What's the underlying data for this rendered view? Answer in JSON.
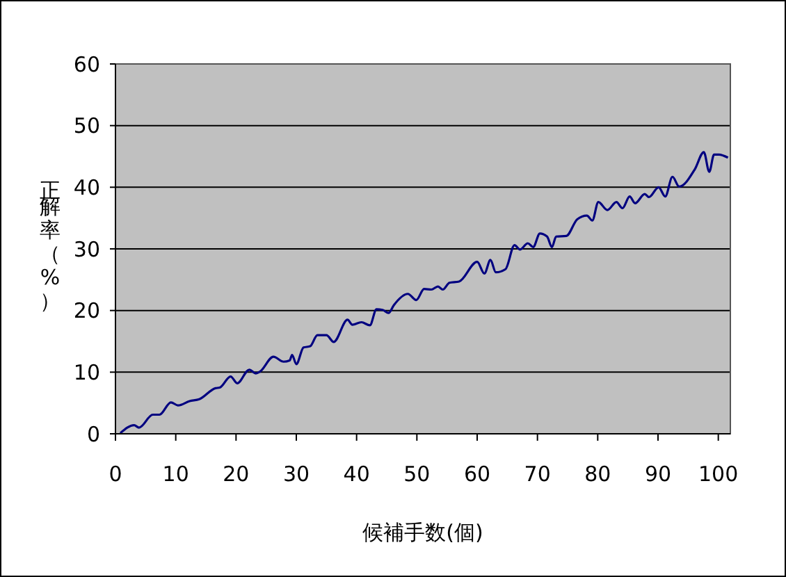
{
  "chart_data": {
    "type": "line",
    "xlabel": "候補手数(個)",
    "ylabel": "正解率（%）",
    "xlim": [
      0,
      102
    ],
    "xticks": [
      0,
      10,
      20,
      30,
      40,
      50,
      60,
      70,
      80,
      90,
      100
    ],
    "ylim": [
      0,
      60
    ],
    "yticks": [
      0,
      10,
      20,
      30,
      40,
      50,
      60
    ],
    "grid": "y",
    "marker": "none",
    "line_style": "solid",
    "series": [
      {
        "color": "#000080",
        "x": [
          0.8,
          3.1,
          3.9,
          6.2,
          7.3,
          9.2,
          10.4,
          12.3,
          13.9,
          16.6,
          17.3,
          19.1,
          20.2,
          22.2,
          23.3,
          24.0,
          26.2,
          27.9,
          28.9,
          29.3,
          30.0,
          31.2,
          32.3,
          33.5,
          35.0,
          36.2,
          38.5,
          39.3,
          40.8,
          42.2,
          43.3,
          44.3,
          45.3,
          46.2,
          48.5,
          49.9,
          51.2,
          52.4,
          53.5,
          54.3,
          55.4,
          57.0,
          60.0,
          61.2,
          62.2,
          63.1,
          64.7,
          66.2,
          67.1,
          68.4,
          69.3,
          70.4,
          71.6,
          72.4,
          73.1,
          74.8,
          76.6,
          78.2,
          79.1,
          80.1,
          81.6,
          83.1,
          84.1,
          85.3,
          86.2,
          87.8,
          88.5,
          90.1,
          91.2,
          92.4,
          93.5,
          96.1,
          97.6,
          98.5,
          99.3,
          100.1,
          101.6
        ],
        "values": [
          0.1,
          1.4,
          1.0,
          3.1,
          3.1,
          5.1,
          4.6,
          5.3,
          5.6,
          7.4,
          7.5,
          9.3,
          8.2,
          10.4,
          9.8,
          10.1,
          12.5,
          11.7,
          11.9,
          12.8,
          11.3,
          14.0,
          14.2,
          16.0,
          16.0,
          14.9,
          18.5,
          17.7,
          18.1,
          17.6,
          20.2,
          20.1,
          19.6,
          20.9,
          22.7,
          21.7,
          23.5,
          23.4,
          23.9,
          23.4,
          24.5,
          24.7,
          27.9,
          26.0,
          28.2,
          26.2,
          26.7,
          30.6,
          29.9,
          30.9,
          30.3,
          32.5,
          32.0,
          30.3,
          32.0,
          32.1,
          34.8,
          35.4,
          34.6,
          37.6,
          36.3,
          37.6,
          36.6,
          38.5,
          37.4,
          38.9,
          38.4,
          40.0,
          38.5,
          41.7,
          40.1,
          42.9,
          45.7,
          42.5,
          45.3,
          45.3,
          44.8
        ]
      }
    ]
  }
}
